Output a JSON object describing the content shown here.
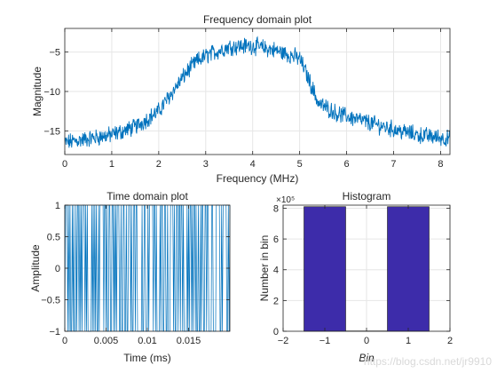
{
  "chart_data": [
    {
      "type": "line",
      "title": "Frequency domain plot",
      "xlabel": "Frequency (MHz)",
      "ylabel": "Magnitude",
      "xlim": [
        0,
        8.2
      ],
      "ylim": [
        -18,
        -2
      ],
      "xticks": [
        0,
        1,
        2,
        3,
        4,
        5,
        6,
        7,
        8
      ],
      "yticks": [
        -15,
        -10,
        -5
      ],
      "grid": true,
      "color": "#0072BD",
      "series": [
        {
          "x": [
            0,
            0.5,
            1.0,
            1.5,
            2.0,
            2.3,
            2.6,
            2.8,
            3.0,
            3.5,
            4.0,
            4.5,
            5.0,
            5.2,
            5.4,
            5.8,
            6.5,
            7.0,
            7.5,
            8.2
          ],
          "values": [
            -16.5,
            -16,
            -15.5,
            -14.5,
            -12.5,
            -10,
            -7.5,
            -6.2,
            -5.5,
            -4.3,
            -4.2,
            -4.8,
            -5.8,
            -8.5,
            -11.5,
            -12.8,
            -14,
            -14.8,
            -15.5,
            -16
          ]
        }
      ]
    },
    {
      "type": "line",
      "title": "Time domain plot",
      "xlabel": "Time (ms)",
      "ylabel": "Amplitude",
      "xlim": [
        0,
        0.02
      ],
      "ylim": [
        -1,
        1
      ],
      "xticks": [
        "0",
        "0.005",
        "0.01",
        "0.015"
      ],
      "yticks": [
        "-1",
        "-0.5",
        "0",
        "0.5",
        "1"
      ],
      "grid": true,
      "color": "#0072BD",
      "series": [
        {
          "values": [
            1,
            -1,
            1,
            -1,
            1,
            -1,
            1,
            -1,
            1,
            -1,
            1,
            -1,
            1,
            -1,
            1,
            -1
          ]
        }
      ]
    },
    {
      "type": "bar",
      "title": "Histogram",
      "xlabel": "Bin",
      "ylabel": "Number in bin",
      "y_exponent": "×10⁵",
      "xlim": [
        -2,
        2
      ],
      "ylim": [
        0,
        8.2
      ],
      "xticks": [
        "-2",
        "-1",
        "0",
        "1",
        "2"
      ],
      "yticks": [
        "0",
        "2",
        "4",
        "6",
        "8"
      ],
      "grid": true,
      "color": "#3D2CAA",
      "categories": [
        -1,
        0,
        1
      ],
      "values": [
        8.1,
        0.02,
        8.1
      ]
    }
  ],
  "watermark": "https://blog.csdn.net/jr9910"
}
